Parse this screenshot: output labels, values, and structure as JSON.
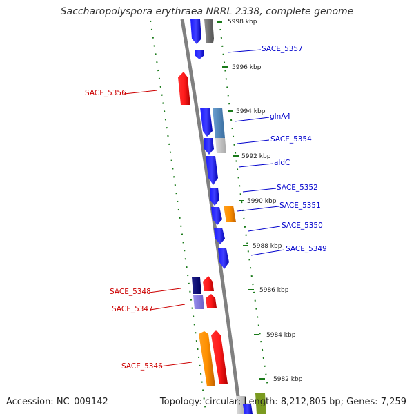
{
  "title": "Saccharopolyspora erythraea NRRL 2338, complete genome",
  "footer": {
    "accession": "Accession: NC_009142",
    "summary": "Topology: circular; Length: 8,212,805 bp; Genes: 7,259"
  },
  "colors": {
    "forward_gene": "#0000ee",
    "reverse_gene": "#ee0000",
    "label_forward": "#0000cc",
    "label_reverse": "#cc0000",
    "tick": "#1a7a1a",
    "backbone": "#808080"
  },
  "kbp_labels": [
    "5998 kbp",
    "5996 kbp",
    "5994 kbp",
    "5992 kbp",
    "5990 kbp",
    "5988 kbp",
    "5986 kbp",
    "5984 kbp",
    "5982 kbp"
  ],
  "gene_labels": {
    "right": [
      "SACE_5357",
      "glnA4",
      "SACE_5354",
      "aldC",
      "SACE_5352",
      "SACE_5351",
      "SACE_5350",
      "SACE_5349"
    ],
    "left": [
      "SACE_5356",
      "SACE_5348",
      "SACE_5347",
      "SACE_5346"
    ]
  }
}
